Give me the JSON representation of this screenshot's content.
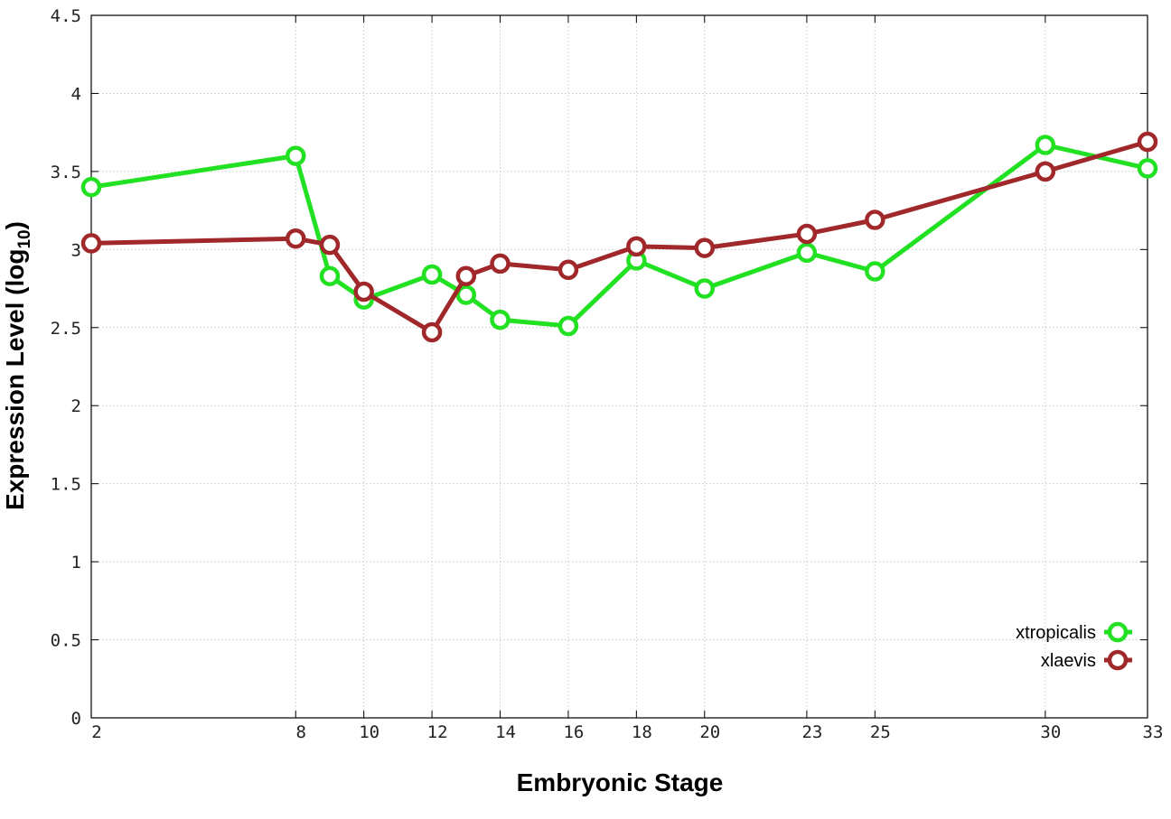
{
  "chart_data": {
    "type": "line",
    "xlabel": "Embryonic Stage",
    "ylabel_main": "Expression Level (log",
    "ylabel_sub": "10",
    "ylabel_close": ")",
    "x": [
      2,
      8,
      9,
      10,
      12,
      13,
      14,
      16,
      18,
      20,
      23,
      25,
      30,
      33
    ],
    "x_tick_labels": [
      "2",
      "8",
      "10",
      "12",
      "14",
      "16",
      "18",
      "20",
      "23",
      "25",
      "30",
      "33"
    ],
    "x_tick_values": [
      2,
      8,
      10,
      12,
      14,
      16,
      18,
      20,
      23,
      25,
      30,
      33
    ],
    "y_ticks": [
      {
        "value": 0,
        "label": "0"
      },
      {
        "value": 0.5,
        "label": "0.5"
      },
      {
        "value": 1,
        "label": "1"
      },
      {
        "value": 1.5,
        "label": "1.5"
      },
      {
        "value": 2,
        "label": "2"
      },
      {
        "value": 2.5,
        "label": "2.5"
      },
      {
        "value": 3,
        "label": "3"
      },
      {
        "value": 3.5,
        "label": "3.5"
      },
      {
        "value": 4,
        "label": "4"
      },
      {
        "value": 4.5,
        "label": "4.5"
      }
    ],
    "xlim": [
      2,
      33
    ],
    "ylim": [
      0,
      4.5
    ],
    "grid": true,
    "legend_position": "bottom-right",
    "series": [
      {
        "name": "xtropicalis",
        "color": "#22e022",
        "values": [
          3.4,
          3.6,
          2.83,
          2.68,
          2.84,
          2.71,
          2.55,
          2.51,
          2.93,
          2.75,
          2.98,
          2.86,
          3.67,
          3.52
        ]
      },
      {
        "name": "xlaevis",
        "color": "#a0282a",
        "values": [
          3.04,
          3.07,
          3.03,
          2.73,
          2.47,
          2.83,
          2.91,
          2.87,
          3.02,
          3.01,
          3.1,
          3.19,
          3.5,
          3.69
        ]
      }
    ]
  }
}
